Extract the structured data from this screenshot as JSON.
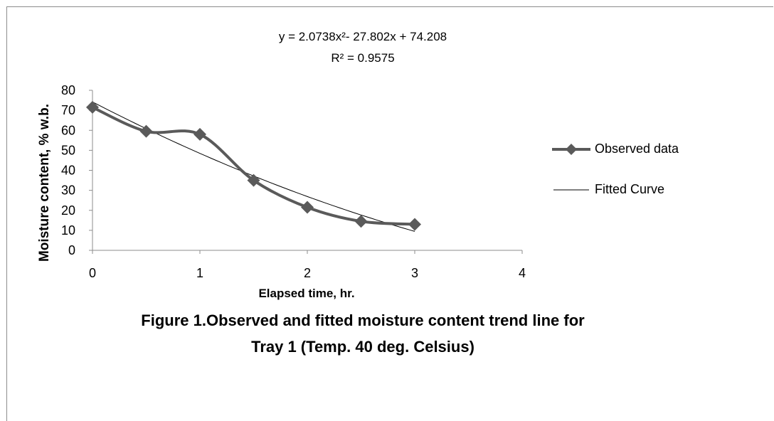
{
  "chart_data": {
    "type": "line",
    "equation": "y = 2.0738x²- 27.802x + 74.208",
    "r_squared": "R² = 0.9575",
    "xlabel": "Elapsed time, hr.",
    "ylabel": "Moisture content, % w.b.",
    "xlim": [
      0,
      4
    ],
    "ylim": [
      0,
      80
    ],
    "x_ticks": [
      0,
      1,
      2,
      3,
      4
    ],
    "y_ticks": [
      0,
      10,
      20,
      30,
      40,
      50,
      60,
      70,
      80
    ],
    "grid": false,
    "legend_position": "right",
    "series": [
      {
        "name": "Observed data",
        "style": "smoothed line with diamond markers",
        "color": "#5a5a5a",
        "x": [
          0,
          0.5,
          1,
          1.5,
          2,
          2.5,
          3
        ],
        "y": [
          71.5,
          59.5,
          58,
          35,
          21.5,
          14.5,
          13
        ]
      },
      {
        "name": "Fitted Curve",
        "style": "thin line",
        "color": "#000000",
        "coefficients": {
          "a": 2.0738,
          "b": -27.802,
          "c": 74.208
        },
        "x_range": [
          0,
          3
        ]
      }
    ]
  },
  "caption": {
    "line1": "Figure 1.Observed and  fitted moisture content trend line for",
    "line2": "Tray 1 (Temp. 40 deg. Celsius)"
  }
}
